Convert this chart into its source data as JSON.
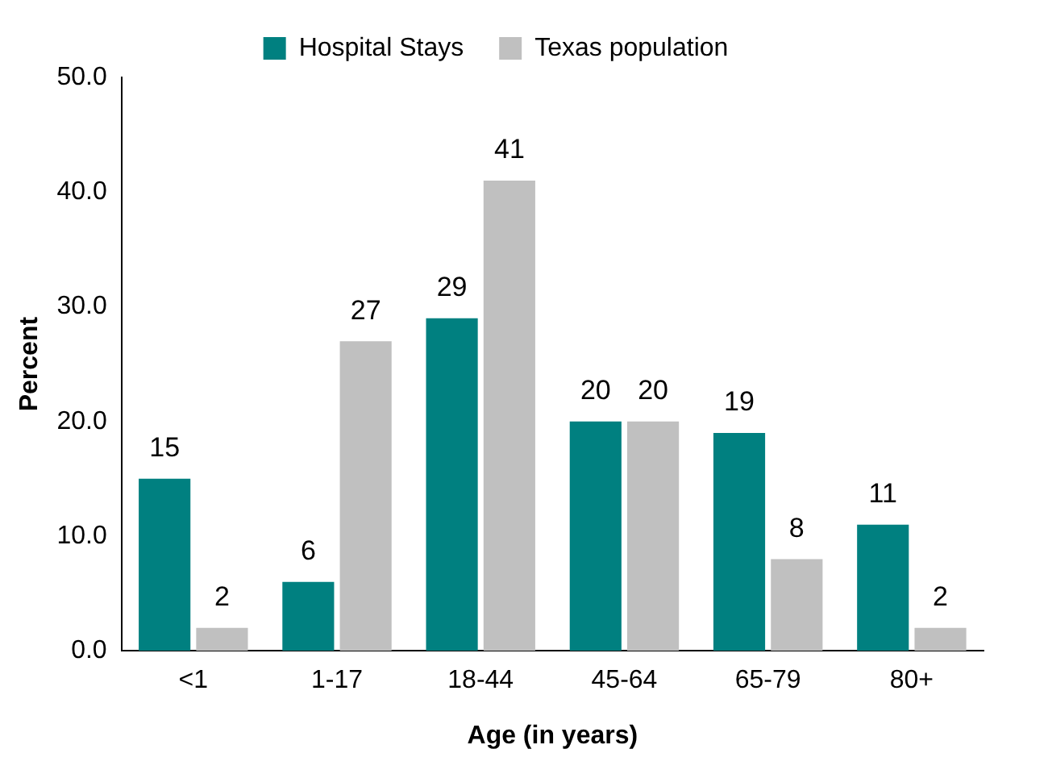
{
  "chart_data": {
    "type": "bar",
    "xlabel": "Age (in years)",
    "ylabel": "Percent",
    "categories": [
      "<1",
      "1-17",
      "18-44",
      "45-64",
      "65-79",
      "80+"
    ],
    "series": [
      {
        "name": "Hospital Stays",
        "color": "#008080",
        "values": [
          15,
          6,
          29,
          20,
          19,
          11
        ],
        "value_labels": [
          "15",
          "6",
          "29",
          "20",
          "19",
          "11"
        ]
      },
      {
        "name": "Texas population",
        "color": "#c0c0c0",
        "values": [
          2,
          27,
          41,
          20,
          8,
          2
        ],
        "value_labels": [
          "2",
          "27",
          "41",
          "20",
          "8",
          "2"
        ]
      }
    ],
    "ylim": [
      0,
      50
    ],
    "yticks": [
      {
        "value": 0,
        "label": "0.0"
      },
      {
        "value": 10,
        "label": "10.0"
      },
      {
        "value": 20,
        "label": "20.0"
      },
      {
        "value": 30,
        "label": "30.0"
      },
      {
        "value": 40,
        "label": "40.0"
      },
      {
        "value": 50,
        "label": "50.0"
      }
    ],
    "grid": false,
    "legend": "top"
  }
}
